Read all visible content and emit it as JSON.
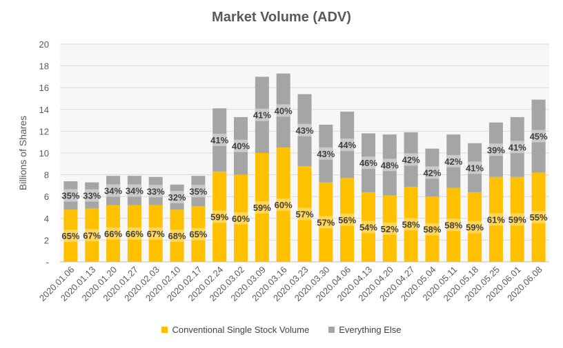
{
  "chart_data": {
    "type": "bar",
    "stacked": true,
    "title": "Market Volume (ADV)",
    "xlabel": "",
    "ylabel": "Billions of Shares",
    "ylim": [
      0,
      20
    ],
    "yticks": [
      0,
      2,
      4,
      6,
      8,
      10,
      12,
      14,
      16,
      18,
      20
    ],
    "ytick_labels": [
      "-",
      "2",
      "4",
      "6",
      "8",
      "10",
      "12",
      "14",
      "16",
      "18",
      "20"
    ],
    "grid": true,
    "legend_position": "bottom",
    "categories": [
      "2020.01.06",
      "2020.01.13",
      "2020.01.20",
      "2020.01.27",
      "2020.02.03",
      "2020.02.10",
      "2020.02.17",
      "2020.02.24",
      "2020.03.02",
      "2020.03.09",
      "2020.03.16",
      "2020.03.23",
      "2020.03.30",
      "2020.04.06",
      "2020.04.13",
      "2020.04.20",
      "2020.04.27",
      "2020.05.04",
      "2020.05.11",
      "2020.05.18",
      "2020.05.25",
      "2020.06.01",
      "2020.06.08"
    ],
    "series": [
      {
        "name": "Conventional Single Stock Volume",
        "color": "#FFC000",
        "values": [
          4.8,
          4.9,
          5.2,
          5.2,
          5.2,
          4.8,
          5.1,
          8.3,
          8.0,
          10.0,
          10.5,
          8.8,
          7.3,
          7.7,
          6.4,
          6.1,
          6.9,
          6.0,
          6.8,
          6.4,
          7.8,
          7.8,
          8.2
        ],
        "labels": [
          "65%",
          "67%",
          "66%",
          "66%",
          "67%",
          "68%",
          "65%",
          "59%",
          "60%",
          "59%",
          "60%",
          "57%",
          "57%",
          "56%",
          "54%",
          "52%",
          "58%",
          "58%",
          "58%",
          "59%",
          "61%",
          "59%",
          "55%"
        ]
      },
      {
        "name": "Everything Else",
        "color": "#A5A5A5",
        "values": [
          2.6,
          2.4,
          2.7,
          2.7,
          2.6,
          2.3,
          2.8,
          5.8,
          5.3,
          7.0,
          6.8,
          6.6,
          5.3,
          6.1,
          5.4,
          5.6,
          5.0,
          4.4,
          4.9,
          4.5,
          5.0,
          5.5,
          6.7
        ],
        "labels": [
          "35%",
          "33%",
          "34%",
          "34%",
          "33%",
          "32%",
          "35%",
          "41%",
          "40%",
          "41%",
          "40%",
          "43%",
          "43%",
          "44%",
          "46%",
          "48%",
          "42%",
          "42%",
          "42%",
          "41%",
          "39%",
          "41%",
          "45%"
        ]
      }
    ]
  }
}
